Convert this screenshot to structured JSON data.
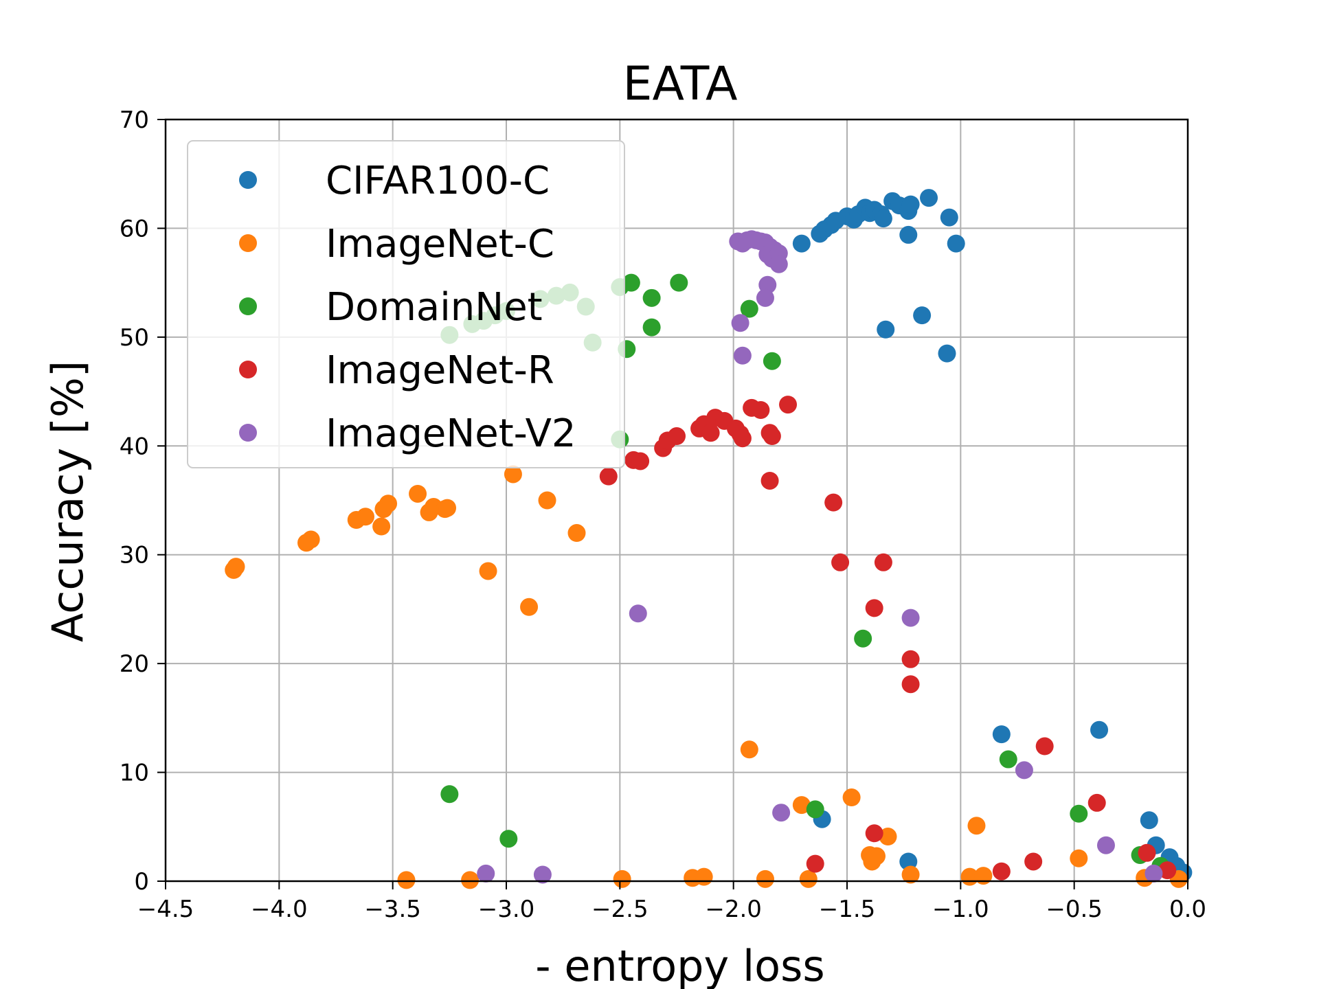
{
  "chart_data": {
    "type": "scatter",
    "title": "EATA",
    "xlabel": "- entropy loss",
    "ylabel": "Accuracy [%]",
    "xlim": [
      -4.5,
      0.0
    ],
    "ylim": [
      0,
      70
    ],
    "xticks": [
      -4.5,
      -4.0,
      -3.5,
      -3.0,
      -2.5,
      -2.0,
      -1.5,
      -1.0,
      -0.5,
      0.0
    ],
    "xtick_labels": [
      "−4.5",
      "−4.0",
      "−3.5",
      "−3.0",
      "−2.5",
      "−2.0",
      "−1.5",
      "−1.0",
      "−0.5",
      "0.0"
    ],
    "yticks": [
      0,
      10,
      20,
      30,
      40,
      50,
      60,
      70
    ],
    "ytick_labels": [
      "0",
      "10",
      "20",
      "30",
      "40",
      "50",
      "60",
      "70"
    ],
    "grid": true,
    "legend_position": "upper-left",
    "series": [
      {
        "name": "CIFAR100-C",
        "color": "#1f77b4",
        "points": [
          [
            -1.7,
            58.6
          ],
          [
            -1.62,
            59.5
          ],
          [
            -1.6,
            59.9
          ],
          [
            -1.57,
            60.3
          ],
          [
            -1.55,
            60.7
          ],
          [
            -1.5,
            61.1
          ],
          [
            -1.47,
            60.8
          ],
          [
            -1.45,
            61.3
          ],
          [
            -1.42,
            61.9
          ],
          [
            -1.4,
            61.4
          ],
          [
            -1.38,
            61.7
          ],
          [
            -1.35,
            61.3
          ],
          [
            -1.34,
            60.9
          ],
          [
            -1.3,
            62.5
          ],
          [
            -1.27,
            62.1
          ],
          [
            -1.23,
            61.6
          ],
          [
            -1.22,
            62.2
          ],
          [
            -1.14,
            62.8
          ],
          [
            -1.05,
            61.0
          ],
          [
            -1.02,
            58.6
          ],
          [
            -1.23,
            59.4
          ],
          [
            -1.33,
            50.7
          ],
          [
            -1.17,
            52.0
          ],
          [
            -1.06,
            48.5
          ],
          [
            -0.82,
            13.5
          ],
          [
            -0.39,
            13.9
          ],
          [
            -1.61,
            5.7
          ],
          [
            -1.23,
            1.8
          ],
          [
            -0.17,
            5.6
          ],
          [
            -0.14,
            3.3
          ],
          [
            -0.08,
            2.2
          ],
          [
            -0.05,
            1.4
          ],
          [
            -0.02,
            0.8
          ]
        ]
      },
      {
        "name": "ImageNet-C",
        "color": "#ff7f0e",
        "points": [
          [
            -4.2,
            28.6
          ],
          [
            -4.19,
            28.9
          ],
          [
            -3.88,
            31.1
          ],
          [
            -3.86,
            31.4
          ],
          [
            -3.66,
            33.2
          ],
          [
            -3.62,
            33.5
          ],
          [
            -3.55,
            32.6
          ],
          [
            -3.54,
            34.2
          ],
          [
            -3.52,
            34.7
          ],
          [
            -3.39,
            35.6
          ],
          [
            -3.34,
            33.9
          ],
          [
            -3.32,
            34.4
          ],
          [
            -3.27,
            34.2
          ],
          [
            -3.26,
            34.3
          ],
          [
            -3.08,
            28.5
          ],
          [
            -2.97,
            37.4
          ],
          [
            -2.9,
            25.2
          ],
          [
            -2.82,
            35.0
          ],
          [
            -2.69,
            32.0
          ],
          [
            -1.93,
            12.1
          ],
          [
            -1.7,
            7.0
          ],
          [
            -1.48,
            7.7
          ],
          [
            -1.4,
            2.4
          ],
          [
            -1.39,
            1.8
          ],
          [
            -1.37,
            2.3
          ],
          [
            -1.32,
            4.1
          ],
          [
            -0.93,
            5.1
          ],
          [
            -0.48,
            2.1
          ],
          [
            -3.44,
            0.1
          ],
          [
            -3.16,
            0.1
          ],
          [
            -2.49,
            0.2
          ],
          [
            -2.18,
            0.3
          ],
          [
            -2.13,
            0.4
          ],
          [
            -1.86,
            0.2
          ],
          [
            -1.67,
            0.2
          ],
          [
            -1.22,
            0.6
          ],
          [
            -0.96,
            0.4
          ],
          [
            -0.9,
            0.5
          ],
          [
            -0.19,
            0.3
          ],
          [
            -0.04,
            0.2
          ]
        ]
      },
      {
        "name": "DomainNet",
        "color": "#2ca02c",
        "points": [
          [
            -3.25,
            50.2
          ],
          [
            -3.15,
            51.2
          ],
          [
            -3.1,
            51.5
          ],
          [
            -3.05,
            52.0
          ],
          [
            -3.0,
            52.4
          ],
          [
            -2.85,
            53.5
          ],
          [
            -2.78,
            53.8
          ],
          [
            -2.72,
            54.1
          ],
          [
            -2.65,
            52.8
          ],
          [
            -2.62,
            49.5
          ],
          [
            -2.5,
            54.6
          ],
          [
            -2.45,
            55.0
          ],
          [
            -2.36,
            53.6
          ],
          [
            -2.24,
            55.0
          ],
          [
            -2.47,
            48.9
          ],
          [
            -2.36,
            50.9
          ],
          [
            -1.93,
            52.6
          ],
          [
            -1.83,
            47.8
          ],
          [
            -2.5,
            40.6
          ],
          [
            -1.43,
            22.3
          ],
          [
            -0.79,
            11.2
          ],
          [
            -3.25,
            8.0
          ],
          [
            -2.99,
            3.9
          ],
          [
            -1.64,
            6.6
          ],
          [
            -0.48,
            6.2
          ],
          [
            -0.21,
            2.4
          ],
          [
            -0.12,
            1.4
          ]
        ]
      },
      {
        "name": "ImageNet-R",
        "color": "#d62728",
        "points": [
          [
            -2.55,
            37.2
          ],
          [
            -2.44,
            38.7
          ],
          [
            -2.41,
            38.6
          ],
          [
            -2.31,
            39.8
          ],
          [
            -2.29,
            40.5
          ],
          [
            -2.25,
            40.9
          ],
          [
            -2.15,
            41.6
          ],
          [
            -2.13,
            42.0
          ],
          [
            -2.1,
            41.2
          ],
          [
            -2.08,
            42.6
          ],
          [
            -2.04,
            42.3
          ],
          [
            -1.99,
            41.6
          ],
          [
            -1.97,
            41.1
          ],
          [
            -1.96,
            40.7
          ],
          [
            -1.92,
            43.5
          ],
          [
            -1.88,
            43.3
          ],
          [
            -1.84,
            41.2
          ],
          [
            -1.83,
            40.9
          ],
          [
            -1.76,
            43.8
          ],
          [
            -1.84,
            36.8
          ],
          [
            -1.56,
            34.8
          ],
          [
            -1.53,
            29.3
          ],
          [
            -1.34,
            29.3
          ],
          [
            -1.38,
            25.1
          ],
          [
            -1.22,
            20.4
          ],
          [
            -1.22,
            18.1
          ],
          [
            -0.63,
            12.4
          ],
          [
            -0.4,
            7.2
          ],
          [
            -1.38,
            4.4
          ],
          [
            -1.64,
            1.6
          ],
          [
            -0.82,
            0.9
          ],
          [
            -0.68,
            1.8
          ],
          [
            -0.18,
            2.6
          ],
          [
            -0.09,
            1.0
          ]
        ]
      },
      {
        "name": "ImageNet-V2",
        "color": "#9467bd",
        "points": [
          [
            -1.98,
            58.8
          ],
          [
            -1.96,
            58.6
          ],
          [
            -1.94,
            58.9
          ],
          [
            -1.92,
            59.0
          ],
          [
            -1.9,
            58.9
          ],
          [
            -1.88,
            58.8
          ],
          [
            -1.86,
            58.7
          ],
          [
            -1.84,
            58.3
          ],
          [
            -1.82,
            58.0
          ],
          [
            -1.85,
            57.6
          ],
          [
            -1.83,
            57.2
          ],
          [
            -1.8,
            57.7
          ],
          [
            -1.8,
            56.7
          ],
          [
            -1.85,
            54.8
          ],
          [
            -1.86,
            53.6
          ],
          [
            -1.97,
            51.3
          ],
          [
            -1.96,
            48.3
          ],
          [
            -2.42,
            24.6
          ],
          [
            -1.22,
            24.2
          ],
          [
            -0.72,
            10.2
          ],
          [
            -1.79,
            6.3
          ],
          [
            -0.36,
            3.3
          ],
          [
            -3.09,
            0.7
          ],
          [
            -2.84,
            0.6
          ],
          [
            -0.15,
            0.7
          ]
        ]
      }
    ]
  }
}
